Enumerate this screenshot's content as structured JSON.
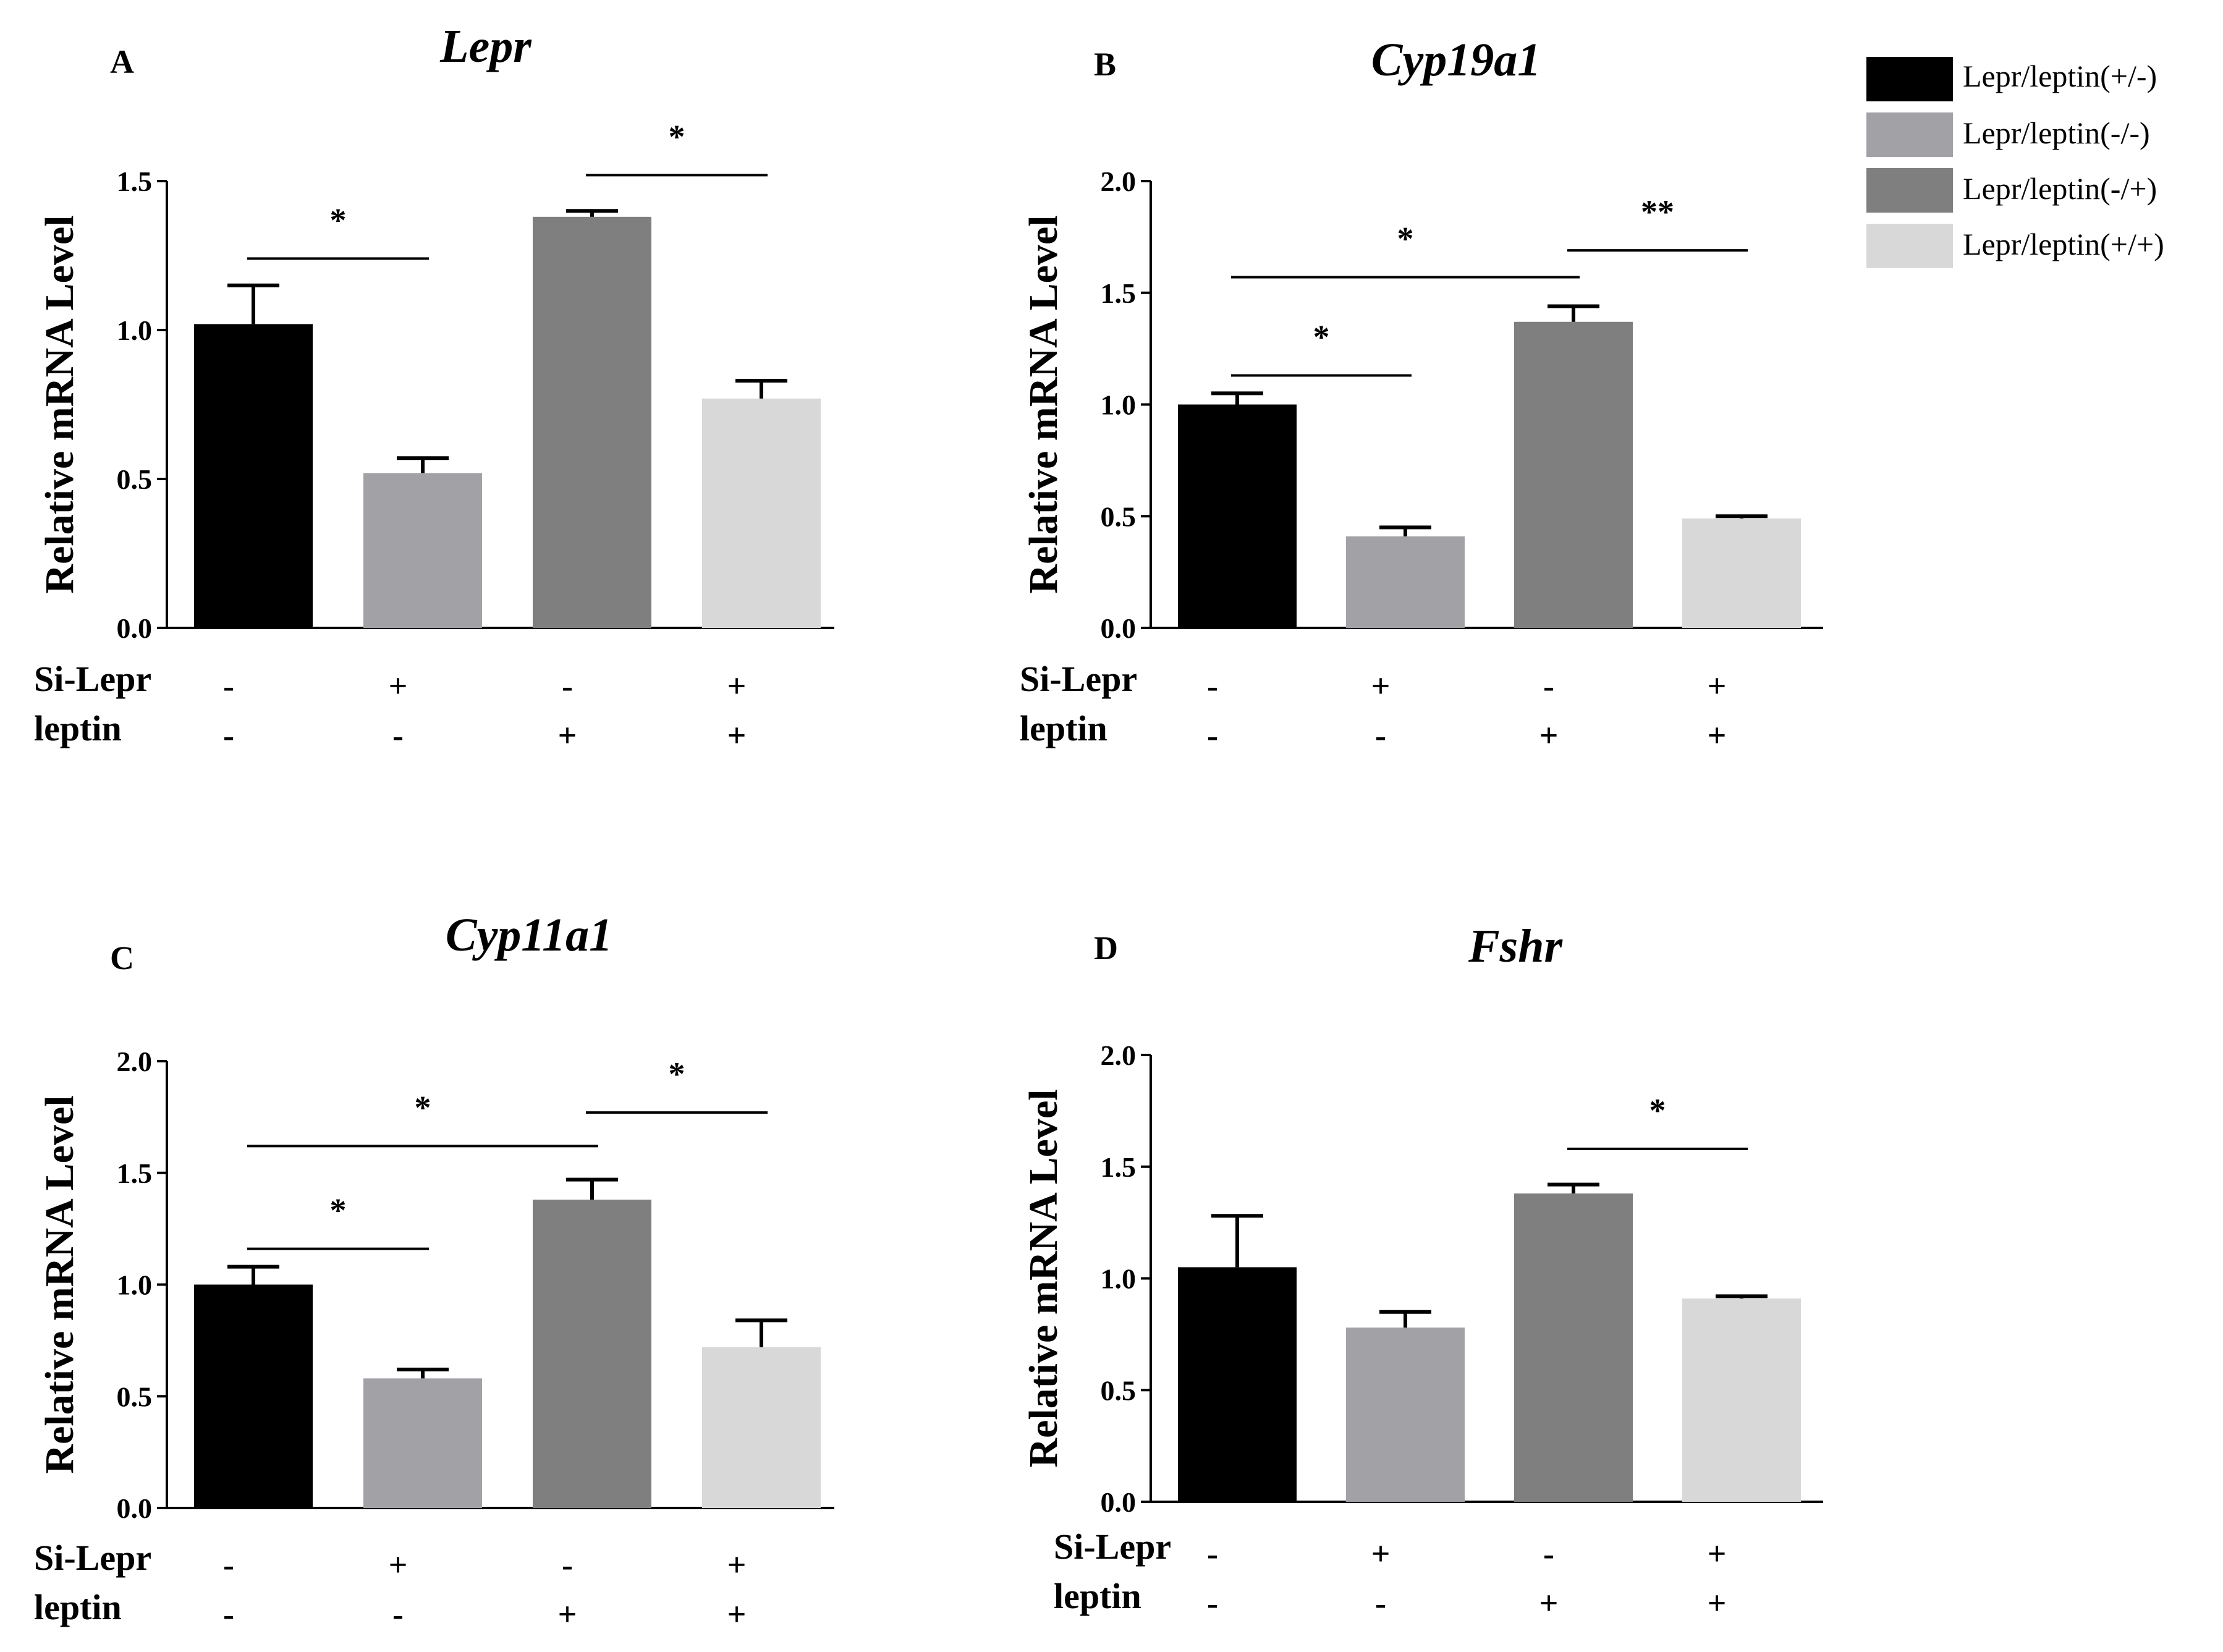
{
  "legend": {
    "items": [
      {
        "label": "Lepr/leptin(+/-)",
        "color": "#000000"
      },
      {
        "label": "Lepr/leptin(-/-)",
        "color": "#a2a2a6"
      },
      {
        "label": "Lepr/leptin(-/+)",
        "color": "#7f7f7f"
      },
      {
        "label": "Lepr/leptin(+/+)",
        "color": "#d8d8d8"
      }
    ]
  },
  "treatment_labels": {
    "row1": "Si-Lepr",
    "row2": "leptin"
  },
  "chart_data": [
    {
      "type": "bar",
      "panel": "A",
      "title": "Lepr",
      "ylabel": "Relative mRNA Level",
      "ylim": [
        0,
        1.5
      ],
      "yticks": [
        "0.0",
        "0.5",
        "1.0",
        "1.5"
      ],
      "categories": [
        "Lepr/leptin(+/-)",
        "Lepr/leptin(-/-)",
        "Lepr/leptin(-/+)",
        "Lepr/leptin(+/+)"
      ],
      "values": [
        1.02,
        0.52,
        1.38,
        0.77
      ],
      "errors": [
        0.13,
        0.05,
        0.02,
        0.06
      ],
      "si_lepr": [
        "-",
        "+",
        "-",
        "+"
      ],
      "leptin": [
        "-",
        "-",
        "+",
        "+"
      ],
      "significance": [
        {
          "from": 0,
          "to": 1,
          "y": 1.24,
          "label": "*"
        },
        {
          "from": 2,
          "to": 3,
          "y": 1.52,
          "label": "*"
        }
      ]
    },
    {
      "type": "bar",
      "panel": "B",
      "title": "Cyp19a1",
      "ylabel": "Relative mRNA Level",
      "ylim": [
        0,
        2.0
      ],
      "yticks": [
        "0.0",
        "0.5",
        "1.0",
        "1.5",
        "2.0"
      ],
      "categories": [
        "Lepr/leptin(+/-)",
        "Lepr/leptin(-/-)",
        "Lepr/leptin(-/+)",
        "Lepr/leptin(+/+)"
      ],
      "values": [
        1.0,
        0.41,
        1.37,
        0.49
      ],
      "errors": [
        0.05,
        0.04,
        0.07,
        0.01
      ],
      "si_lepr": [
        "-",
        "+",
        "-",
        "+"
      ],
      "leptin": [
        "-",
        "-",
        "+",
        "+"
      ],
      "significance": [
        {
          "from": 0,
          "to": 1,
          "y": 1.13,
          "label": "*"
        },
        {
          "from": 0,
          "to": 2,
          "y": 1.57,
          "label": "*"
        },
        {
          "from": 2,
          "to": 3,
          "y": 1.69,
          "label": "**"
        }
      ]
    },
    {
      "type": "bar",
      "panel": "C",
      "title": "Cyp11a1",
      "ylabel": "Relative mRNA Level",
      "ylim": [
        0,
        2.0
      ],
      "yticks": [
        "0.0",
        "0.5",
        "1.0",
        "1.5",
        "2.0"
      ],
      "categories": [
        "Lepr/leptin(+/-)",
        "Lepr/leptin(-/-)",
        "Lepr/leptin(-/+)",
        "Lepr/leptin(+/+)"
      ],
      "values": [
        1.0,
        0.58,
        1.38,
        0.72
      ],
      "errors": [
        0.08,
        0.04,
        0.09,
        0.12
      ],
      "si_lepr": [
        "-",
        "+",
        "-",
        "+"
      ],
      "leptin": [
        "-",
        "-",
        "+",
        "+"
      ],
      "significance": [
        {
          "from": 0,
          "to": 1,
          "y": 1.16,
          "label": "*"
        },
        {
          "from": 0,
          "to": 2,
          "y": 1.62,
          "label": "*"
        },
        {
          "from": 2,
          "to": 3,
          "y": 1.77,
          "label": "*"
        }
      ]
    },
    {
      "type": "bar",
      "panel": "D",
      "title": "Fshr",
      "ylabel": "Relative mRNA Level",
      "ylim": [
        0,
        2.0
      ],
      "yticks": [
        "0.0",
        "0.5",
        "1.0",
        "1.5",
        "2.0"
      ],
      "categories": [
        "Lepr/leptin(+/-)",
        "Lepr/leptin(-/-)",
        "Lepr/leptin(-/+)",
        "Lepr/leptin(+/+)"
      ],
      "values": [
        1.05,
        0.78,
        1.38,
        0.91
      ],
      "errors": [
        0.23,
        0.07,
        0.04,
        0.01
      ],
      "si_lepr": [
        "-",
        "+",
        "-",
        "+"
      ],
      "leptin": [
        "-",
        "-",
        "+",
        "+"
      ],
      "significance": [
        {
          "from": 2,
          "to": 3,
          "y": 1.58,
          "label": "*"
        }
      ]
    }
  ]
}
